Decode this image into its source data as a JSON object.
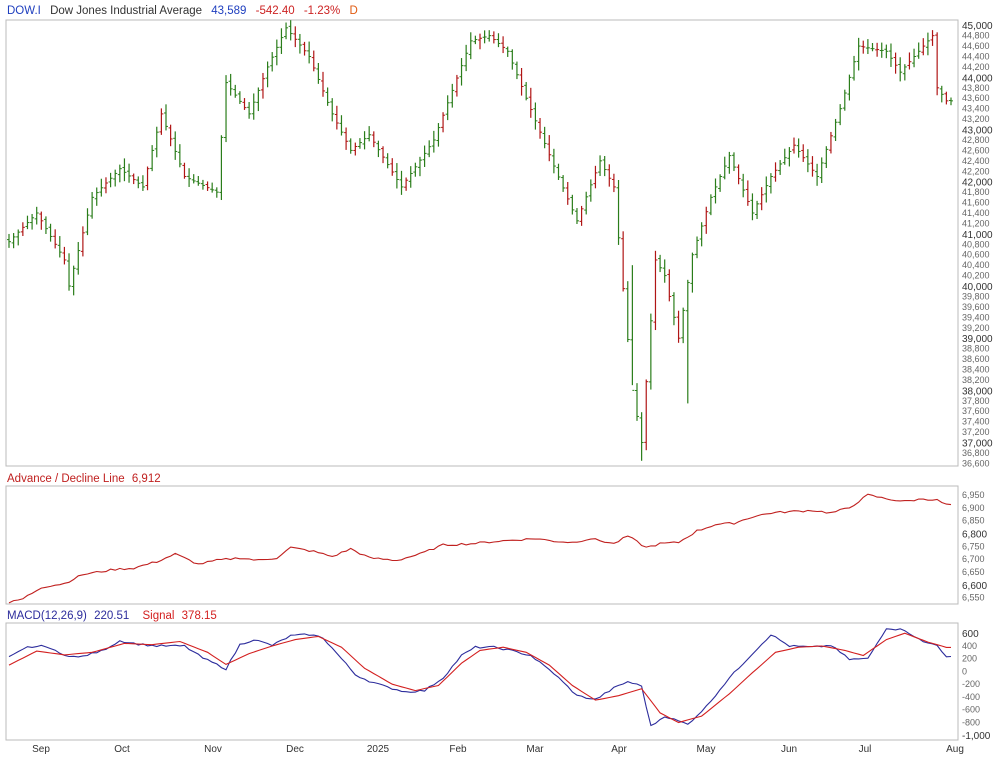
{
  "header": {
    "symbol": "DOW.I",
    "name": "Dow Jones Industrial Average",
    "price": "43,589",
    "change": "-542.40",
    "change_pct": "-1.23%",
    "period": "D"
  },
  "colors": {
    "up": "#2a7d1a",
    "down": "#b01515",
    "adline": "#c0201f",
    "macd": "#2c2c9c",
    "signal": "#d31f1f",
    "symbol": "#1f3fbf",
    "price": "#1f3fbf",
    "change": "#cc2222",
    "period": "#e05a10"
  },
  "ad_panel": {
    "title": "Advance / Decline Line",
    "value": "6,912"
  },
  "macd_panel": {
    "title": "MACD(12,26,9)",
    "value": "220.51",
    "signal_title": "Signal",
    "signal_value": "378.15"
  },
  "x_axis": {
    "labels": [
      "Sep",
      "Oct",
      "Nov",
      "Dec",
      "2025",
      "Feb",
      "Mar",
      "Apr",
      "May",
      "Jun",
      "Jul",
      "Aug"
    ]
  },
  "chart_data": [
    {
      "type": "ohlc",
      "title": "Dow Jones Industrial Average",
      "y_major_ticks": [
        "37,000",
        "38,000",
        "39,000",
        "40,000",
        "41,000",
        "42,000",
        "43,000",
        "44,000",
        "45,000"
      ],
      "y_minor_ticks": [
        "36,600",
        "36,800",
        "37,200",
        "37,400",
        "37,600",
        "37,800",
        "38,200",
        "38,400",
        "38,600",
        "38,800",
        "39,200",
        "39,400",
        "39,600",
        "39,800",
        "40,200",
        "40,400",
        "40,600",
        "40,800",
        "41,200",
        "41,400",
        "41,600",
        "41,800",
        "42,200",
        "42,400",
        "42,600",
        "42,800",
        "43,200",
        "43,400",
        "43,600",
        "43,800",
        "44,200",
        "44,400",
        "44,600",
        "44,800"
      ],
      "ylim": [
        36550,
        45100
      ],
      "anchors": [
        [
          0,
          40850
        ],
        [
          6,
          41400
        ],
        [
          12,
          40500
        ],
        [
          13,
          40000
        ],
        [
          18,
          41700
        ],
        [
          24,
          42250
        ],
        [
          29,
          41900
        ],
        [
          33,
          43300
        ],
        [
          38,
          42100
        ],
        [
          45,
          41800
        ],
        [
          47,
          43900
        ],
        [
          52,
          43300
        ],
        [
          56,
          44200
        ],
        [
          60,
          44950
        ],
        [
          65,
          44400
        ],
        [
          70,
          43300
        ],
        [
          74,
          42600
        ],
        [
          78,
          42900
        ],
        [
          85,
          41900
        ],
        [
          92,
          42800
        ],
        [
          100,
          44700
        ],
        [
          104,
          44800
        ],
        [
          108,
          44500
        ],
        [
          112,
          43600
        ],
        [
          118,
          42300
        ],
        [
          123,
          41250
        ],
        [
          128,
          42400
        ],
        [
          131,
          41900
        ],
        [
          135,
          38000
        ],
        [
          137,
          37000
        ],
        [
          140,
          40500
        ],
        [
          142,
          40200
        ],
        [
          145,
          39000
        ],
        [
          148,
          40600
        ],
        [
          152,
          41700
        ],
        [
          156,
          42500
        ],
        [
          161,
          41400
        ],
        [
          165,
          42100
        ],
        [
          170,
          42700
        ],
        [
          175,
          42100
        ],
        [
          180,
          43400
        ],
        [
          184,
          44600
        ],
        [
          190,
          44500
        ],
        [
          193,
          44100
        ],
        [
          196,
          44400
        ],
        [
          200,
          44800
        ],
        [
          201,
          43800
        ],
        [
          203,
          43550
        ]
      ],
      "down_days": [
        3,
        7,
        10,
        12,
        16,
        21,
        27,
        30,
        33,
        35,
        38,
        43,
        51,
        55,
        62,
        64,
        66,
        68,
        71,
        73,
        75,
        79,
        81,
        83,
        86,
        94,
        97,
        102,
        105,
        107,
        111,
        113,
        115,
        117,
        121,
        124,
        127,
        130,
        131,
        133,
        138,
        140,
        143,
        145,
        151,
        158,
        160,
        163,
        166,
        170,
        172,
        174,
        178,
        185,
        188,
        192,
        195,
        198,
        200,
        201,
        203
      ]
    },
    {
      "type": "line",
      "title": "Advance / Decline Line",
      "y_major_ticks": [
        "6,600",
        "6,800"
      ],
      "y_minor_ticks": [
        "6,550",
        "6,650",
        "6,700",
        "6,750",
        "6,850",
        "6,900",
        "6,950"
      ],
      "ylim": [
        6525,
        6985
      ],
      "anchors": [
        [
          0,
          6530
        ],
        [
          3,
          6545
        ],
        [
          7,
          6590
        ],
        [
          12,
          6605
        ],
        [
          16,
          6640
        ],
        [
          23,
          6660
        ],
        [
          27,
          6665
        ],
        [
          32,
          6690
        ],
        [
          36,
          6720
        ],
        [
          41,
          6680
        ],
        [
          45,
          6695
        ],
        [
          50,
          6705
        ],
        [
          54,
          6695
        ],
        [
          58,
          6705
        ],
        [
          61,
          6745
        ],
        [
          66,
          6730
        ],
        [
          70,
          6710
        ],
        [
          74,
          6740
        ],
        [
          78,
          6705
        ],
        [
          84,
          6695
        ],
        [
          89,
          6720
        ],
        [
          94,
          6755
        ],
        [
          100,
          6760
        ],
        [
          106,
          6770
        ],
        [
          110,
          6775
        ],
        [
          114,
          6780
        ],
        [
          118,
          6770
        ],
        [
          122,
          6765
        ],
        [
          126,
          6780
        ],
        [
          131,
          6760
        ],
        [
          134,
          6790
        ],
        [
          138,
          6745
        ],
        [
          141,
          6760
        ],
        [
          145,
          6765
        ],
        [
          149,
          6810
        ],
        [
          153,
          6835
        ],
        [
          157,
          6840
        ],
        [
          161,
          6865
        ],
        [
          165,
          6880
        ],
        [
          169,
          6885
        ],
        [
          174,
          6890
        ],
        [
          178,
          6880
        ],
        [
          182,
          6900
        ],
        [
          186,
          6950
        ],
        [
          190,
          6935
        ],
        [
          194,
          6925
        ],
        [
          198,
          6935
        ],
        [
          201,
          6930
        ],
        [
          203,
          6912
        ]
      ]
    },
    {
      "type": "line",
      "title": "MACD(12,26,9)",
      "y_major_ticks": [
        "-1,000",
        "600"
      ],
      "y_minor_ticks": [
        "-800",
        "-600",
        "-400",
        "-200",
        "0",
        "200",
        "400"
      ],
      "ylim": [
        -1075,
        760
      ],
      "series": [
        {
          "name": "MACD(12,26,9)",
          "anchors": [
            [
              0,
              220
            ],
            [
              4,
              380
            ],
            [
              8,
              400
            ],
            [
              11,
              280
            ],
            [
              15,
              220
            ],
            [
              20,
              320
            ],
            [
              24,
              480
            ],
            [
              28,
              430
            ],
            [
              32,
              400
            ],
            [
              38,
              400
            ],
            [
              42,
              210
            ],
            [
              47,
              40
            ],
            [
              50,
              420
            ],
            [
              53,
              500
            ],
            [
              57,
              410
            ],
            [
              61,
              560
            ],
            [
              65,
              580
            ],
            [
              68,
              530
            ],
            [
              72,
              200
            ],
            [
              75,
              -50
            ],
            [
              78,
              -150
            ],
            [
              82,
              -250
            ],
            [
              86,
              -320
            ],
            [
              90,
              -300
            ],
            [
              94,
              -100
            ],
            [
              98,
              250
            ],
            [
              101,
              380
            ],
            [
              105,
              380
            ],
            [
              108,
              340
            ],
            [
              113,
              250
            ],
            [
              118,
              -30
            ],
            [
              123,
              -380
            ],
            [
              127,
              -440
            ],
            [
              131,
              -260
            ],
            [
              134,
              -160
            ],
            [
              137,
              -230
            ],
            [
              139,
              -860
            ],
            [
              142,
              -700
            ],
            [
              147,
              -830
            ],
            [
              151,
              -550
            ],
            [
              156,
              -100
            ],
            [
              161,
              280
            ],
            [
              165,
              580
            ],
            [
              169,
              400
            ],
            [
              174,
              380
            ],
            [
              178,
              410
            ],
            [
              182,
              190
            ],
            [
              186,
              200
            ],
            [
              190,
              680
            ],
            [
              194,
              650
            ],
            [
              198,
              460
            ],
            [
              201,
              420
            ],
            [
              203,
              221
            ]
          ]
        },
        {
          "name": "Signal",
          "anchors": [
            [
              0,
              100
            ],
            [
              6,
              320
            ],
            [
              12,
              260
            ],
            [
              18,
              300
            ],
            [
              25,
              440
            ],
            [
              31,
              420
            ],
            [
              37,
              470
            ],
            [
              43,
              300
            ],
            [
              47,
              110
            ],
            [
              52,
              280
            ],
            [
              57,
              400
            ],
            [
              62,
              500
            ],
            [
              67,
              550
            ],
            [
              72,
              380
            ],
            [
              77,
              50
            ],
            [
              83,
              -200
            ],
            [
              88,
              -300
            ],
            [
              93,
              -220
            ],
            [
              98,
              130
            ],
            [
              102,
              330
            ],
            [
              107,
              380
            ],
            [
              112,
              300
            ],
            [
              117,
              100
            ],
            [
              122,
              -220
            ],
            [
              127,
              -450
            ],
            [
              132,
              -380
            ],
            [
              137,
              -270
            ],
            [
              141,
              -650
            ],
            [
              145,
              -800
            ],
            [
              150,
              -700
            ],
            [
              156,
              -350
            ],
            [
              161,
              -20
            ],
            [
              166,
              300
            ],
            [
              171,
              380
            ],
            [
              176,
              400
            ],
            [
              181,
              330
            ],
            [
              185,
              250
            ],
            [
              190,
              500
            ],
            [
              194,
              600
            ],
            [
              199,
              460
            ],
            [
              203,
              378
            ]
          ]
        }
      ]
    }
  ]
}
